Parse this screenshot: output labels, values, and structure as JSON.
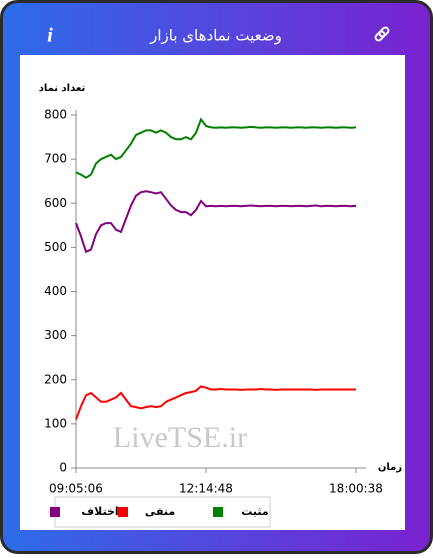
{
  "header": {
    "title": "وضعیت نمادهای بازار",
    "info_label": "i"
  },
  "chart_data": {
    "type": "line",
    "ylabel": "تعداد نماد",
    "xlabel": "زمان",
    "watermark": "LiveTSE.ir",
    "categories": [
      "09:05:06",
      null,
      null,
      null,
      null,
      null,
      null,
      null,
      null,
      null,
      null,
      null,
      null,
      null,
      null,
      null,
      null,
      null,
      null,
      null,
      null,
      null,
      null,
      null,
      null,
      null,
      "12:14:48",
      null,
      null,
      null,
      null,
      null,
      null,
      null,
      null,
      null,
      null,
      null,
      null,
      null,
      null,
      null,
      null,
      null,
      null,
      null,
      null,
      null,
      null,
      null,
      null,
      null,
      null,
      null,
      null,
      null,
      "18:00:38"
    ],
    "ylim": [
      0,
      800
    ],
    "yticks": [
      0,
      100,
      200,
      300,
      400,
      500,
      600,
      700,
      800
    ],
    "grid": false,
    "legend": "bottom",
    "series": [
      {
        "name": "مثبت",
        "color": "#008000",
        "values": [
          670,
          665,
          658,
          665,
          690,
          700,
          705,
          710,
          700,
          705,
          720,
          735,
          755,
          760,
          765,
          765,
          760,
          765,
          760,
          750,
          745,
          745,
          750,
          745,
          760,
          790,
          775,
          772,
          771,
          772,
          771,
          772,
          772,
          771,
          772,
          773,
          772,
          771,
          772,
          772,
          771,
          772,
          772,
          771,
          772,
          772,
          771,
          772,
          772,
          771,
          772,
          772,
          771,
          772,
          772,
          771,
          772
        ]
      },
      {
        "name": "منفی",
        "color": "#ff0000",
        "values": [
          110,
          140,
          165,
          170,
          160,
          150,
          150,
          155,
          160,
          170,
          155,
          140,
          138,
          135,
          138,
          140,
          138,
          140,
          150,
          155,
          160,
          165,
          170,
          172,
          175,
          185,
          182,
          178,
          178,
          179,
          178,
          178,
          178,
          177,
          178,
          178,
          178,
          179,
          178,
          178,
          177,
          178,
          178,
          178,
          178,
          178,
          178,
          178,
          177,
          178,
          178,
          178,
          178,
          178,
          178,
          178,
          178
        ]
      },
      {
        "name": "اختلاف",
        "color": "#800080",
        "values": [
          555,
          525,
          490,
          495,
          530,
          550,
          555,
          555,
          540,
          535,
          565,
          595,
          617,
          625,
          627,
          625,
          622,
          625,
          610,
          595,
          585,
          580,
          580,
          573,
          585,
          605,
          593,
          594,
          593,
          594,
          593,
          594,
          594,
          593,
          594,
          595,
          594,
          593,
          594,
          594,
          593,
          594,
          594,
          593,
          594,
          594,
          593,
          594,
          595,
          593,
          594,
          594,
          593,
          594,
          594,
          593,
          594
        ]
      }
    ]
  }
}
